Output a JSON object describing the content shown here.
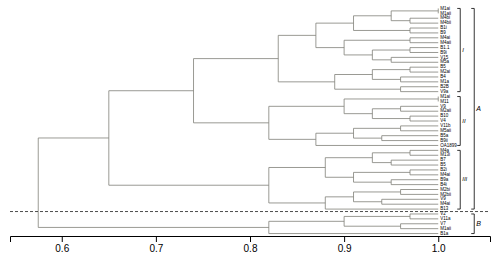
{
  "chart_data": {
    "type": "dendrogram",
    "color": "#808078",
    "leaf_labels": [
      "M1ai",
      "M1aii",
      "M4bi",
      "M4bii",
      "B1i",
      "B9",
      "M4ai",
      "M4aii",
      "B1.1",
      "B9i",
      "V15",
      "M5a",
      "B5",
      "M2ai",
      "B4",
      "M1a",
      "B2B",
      "V9a",
      "M1ai",
      "M11",
      "V9",
      "M2aii",
      "B10",
      "V4",
      "V11b",
      "M5aii",
      "B5a",
      "B9ii",
      "OA1899",
      "M4a",
      "M13i",
      "B7",
      "B5",
      "B2i",
      "M4ai",
      "B9a",
      "B4i",
      "M2bi",
      "M2bii",
      "V9",
      "M4ai",
      "B13",
      "V2",
      "V11a",
      "V7",
      "M1aii",
      "B1a"
    ],
    "leaf_height": 1.0,
    "tree": {
      "height": 0.575,
      "children": [
        {
          "height": 0.65,
          "children": [
            {
              "height": 0.74,
              "children": [
                {
                  "height": 0.83,
                  "children": [
                    {
                      "height": 0.87,
                      "children": [
                        {
                          "height": 0.91,
                          "children": [
                            {
                              "height": 0.95,
                              "children": [
                                {
                                  "height": 1.0,
                                  "children": [
                                    0,
                                    1
                                  ]
                                },
                                {
                                  "height": 0.97,
                                  "children": [
                                    2,
                                    3
                                  ]
                                }
                              ]
                            },
                            {
                              "height": 0.97,
                              "children": [
                                4,
                                5
                              ]
                            }
                          ]
                        },
                        {
                          "height": 0.9,
                          "children": [
                            {
                              "height": 0.97,
                              "children": [
                                6,
                                7
                              ]
                            },
                            {
                              "height": 0.93,
                              "children": [
                                {
                                  "height": 0.97,
                                  "children": [
                                    8,
                                    9
                                  ]
                                },
                                {
                                  "height": 0.95,
                                  "children": [
                                    10,
                                    11
                                  ]
                                }
                              ]
                            }
                          ]
                        }
                      ]
                    },
                    {
                      "height": 0.89,
                      "children": [
                        {
                          "height": 0.93,
                          "children": [
                            {
                              "height": 0.97,
                              "children": [
                                12,
                                13
                              ]
                            },
                            {
                              "height": 0.96,
                              "children": [
                                14,
                                15
                              ]
                            }
                          ]
                        },
                        {
                          "height": 0.96,
                          "children": [
                            16,
                            17
                          ]
                        }
                      ]
                    }
                  ]
                },
                {
                  "height": 0.82,
                  "children": [
                    {
                      "height": 0.9,
                      "children": [
                        {
                          "height": 1.0,
                          "children": [
                            18,
                            19
                          ]
                        },
                        {
                          "height": 0.93,
                          "children": [
                            {
                              "height": 0.96,
                              "children": [
                                20,
                                21
                              ]
                            },
                            {
                              "height": 0.97,
                              "children": [
                                22,
                                23
                              ]
                            }
                          ]
                        }
                      ]
                    },
                    {
                      "height": 0.87,
                      "children": [
                        {
                          "height": 0.91,
                          "children": [
                            {
                              "height": 0.96,
                              "children": [
                                24,
                                25
                              ]
                            },
                            {
                              "height": 0.94,
                              "children": [
                                26,
                                27
                              ]
                            }
                          ]
                        },
                        28
                      ]
                    }
                  ]
                }
              ]
            },
            {
              "height": 0.82,
              "children": [
                {
                  "height": 0.88,
                  "children": [
                    {
                      "height": 0.93,
                      "children": [
                        {
                          "height": 0.97,
                          "children": [
                            29,
                            30
                          ]
                        },
                        {
                          "height": 0.95,
                          "children": [
                            31,
                            32
                          ]
                        }
                      ]
                    },
                    {
                      "height": 0.91,
                      "children": [
                        {
                          "height": 0.97,
                          "children": [
                            33,
                            34
                          ]
                        },
                        {
                          "height": 0.95,
                          "children": [
                            35,
                            36
                          ]
                        }
                      ]
                    }
                  ]
                },
                {
                  "height": 0.88,
                  "children": [
                    {
                      "height": 0.91,
                      "children": [
                        {
                          "height": 0.96,
                          "children": [
                            37,
                            38
                          ]
                        },
                        {
                          "height": 0.94,
                          "children": [
                            39,
                            40
                          ]
                        }
                      ]
                    },
                    41
                  ]
                }
              ]
            }
          ]
        },
        {
          "height": 0.82,
          "children": [
            {
              "height": 0.9,
              "children": [
                {
                  "height": 0.97,
                  "children": [
                    42,
                    43
                  ]
                },
                {
                  "height": 0.96,
                  "children": [
                    44,
                    45
                  ]
                }
              ]
            },
            46
          ]
        }
      ]
    },
    "groups": [
      {
        "label": "A",
        "start": 0,
        "end": 41,
        "groups": [
          {
            "label": "I",
            "start": 0,
            "end": 17
          },
          {
            "label": "II",
            "start": 18,
            "end": 28
          },
          {
            "label": "III",
            "start": 29,
            "end": 41
          }
        ]
      },
      {
        "label": "B",
        "start": 42,
        "end": 46
      }
    ],
    "xlim": [
      0.545,
      1.055
    ],
    "xticks": [
      0.6,
      0.7,
      0.8,
      0.9,
      {
        "value": 1,
        "label": "1.0"
      }
    ]
  }
}
